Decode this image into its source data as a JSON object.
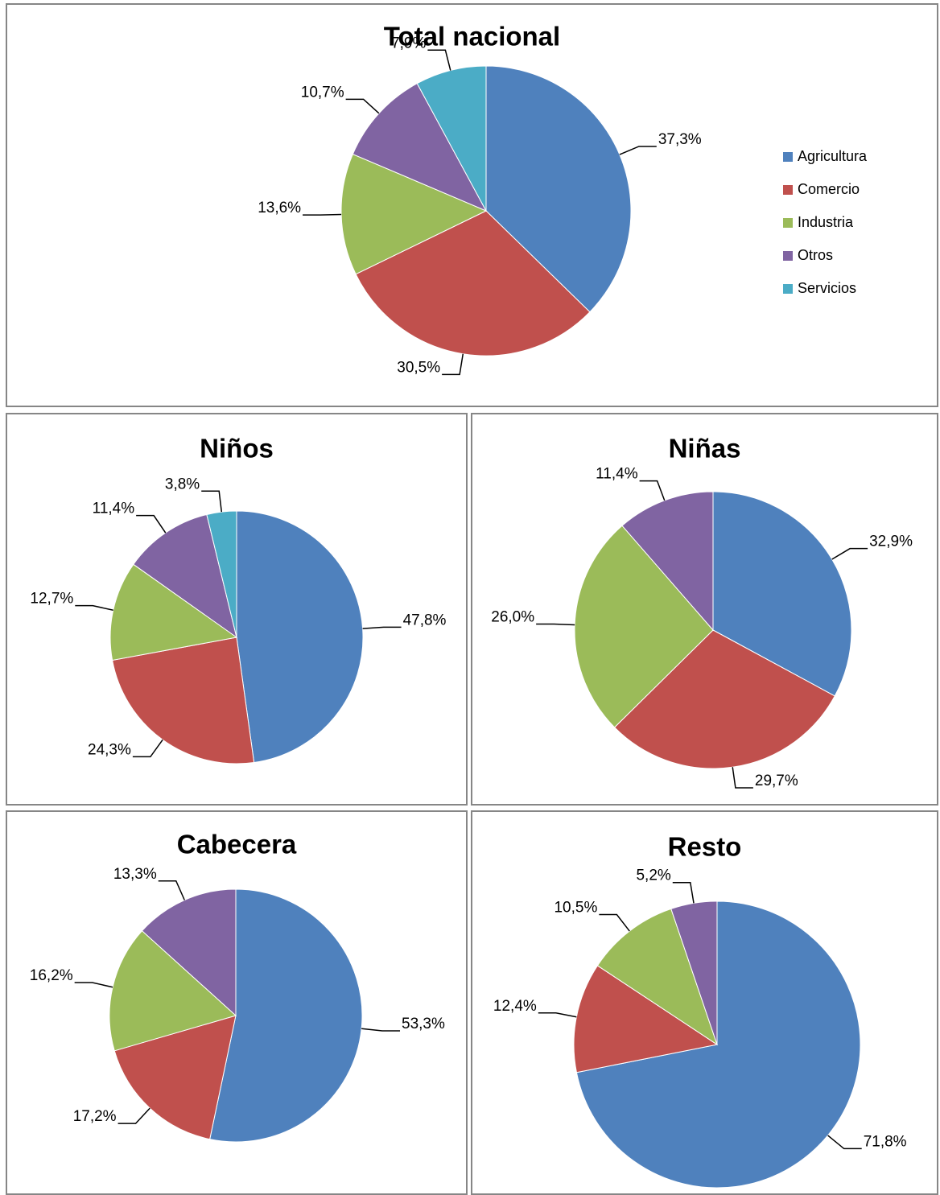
{
  "chart_data": [
    {
      "type": "pie",
      "title": "Total nacional",
      "categories": [
        "Agricultura",
        "Comercio",
        "Industria",
        "Otros",
        "Servicios"
      ],
      "values": [
        37.3,
        30.5,
        13.6,
        10.7,
        7.9
      ],
      "value_labels": [
        "37,3%",
        "30,5%",
        "13,6%",
        "10,7%",
        "7,9%"
      ],
      "colors": [
        "#4f81bd",
        "#c0504d",
        "#9bbb59",
        "#8064a2",
        "#4bacc6"
      ],
      "legend": "right"
    },
    {
      "type": "pie",
      "title": "Niños",
      "categories": [
        "Agricultura",
        "Comercio",
        "Industria",
        "Otros",
        "Servicios"
      ],
      "values": [
        47.8,
        24.3,
        12.7,
        11.4,
        3.8
      ],
      "value_labels": [
        "47,8%",
        "24,3%",
        "12,7%",
        "11,4%",
        "3,8%"
      ],
      "colors": [
        "#4f81bd",
        "#c0504d",
        "#9bbb59",
        "#8064a2",
        "#4bacc6"
      ]
    },
    {
      "type": "pie",
      "title": "Niñas",
      "categories": [
        "Agricultura",
        "Comercio",
        "Industria",
        "Otros"
      ],
      "values": [
        32.9,
        29.7,
        26.0,
        11.4
      ],
      "value_labels": [
        "32,9%",
        "29,7%",
        "26,0%",
        "11,4%"
      ],
      "colors": [
        "#4f81bd",
        "#c0504d",
        "#9bbb59",
        "#8064a2"
      ]
    },
    {
      "type": "pie",
      "title": "Cabecera",
      "categories": [
        "Agricultura",
        "Comercio",
        "Industria",
        "Otros"
      ],
      "values": [
        53.3,
        17.2,
        16.2,
        13.3
      ],
      "value_labels": [
        "53,3%",
        "17,2%",
        "16,2%",
        "13,3%"
      ],
      "colors": [
        "#4f81bd",
        "#c0504d",
        "#9bbb59",
        "#8064a2"
      ]
    },
    {
      "type": "pie",
      "title": "Resto",
      "categories": [
        "Agricultura",
        "Comercio",
        "Industria",
        "Otros"
      ],
      "values": [
        71.8,
        12.4,
        10.5,
        5.2
      ],
      "value_labels": [
        "71,8%",
        "12,4%",
        "10,5%",
        "5,2%"
      ],
      "colors": [
        "#4f81bd",
        "#c0504d",
        "#9bbb59",
        "#8064a2"
      ]
    }
  ]
}
